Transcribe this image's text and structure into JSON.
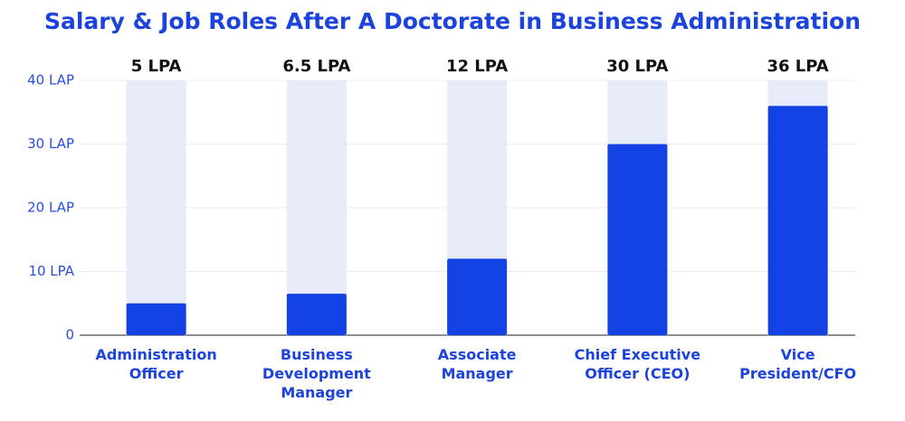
{
  "chart_data": {
    "type": "bar",
    "title": "Salary & Job Roles After A Doctorate in Business Administration",
    "categories": [
      "Administration Officer",
      "Business Development Manager",
      "Associate Manager",
      "Chief Executive Officer (CEO)",
      "Vice President/CFO"
    ],
    "values": [
      5,
      6.5,
      12,
      30,
      36
    ],
    "value_labels": [
      "5 LPA",
      "6.5 LPA",
      "12 LPA",
      "30 LPA",
      "36 LPA"
    ],
    "color": "#1242e6",
    "ylim": [
      0,
      40
    ],
    "yticks": [
      0,
      {
        "value": 10,
        "label": "10 LPA"
      },
      {
        "value": 20,
        "label": "20 LAP"
      },
      {
        "value": 30,
        "label": "30 LAP"
      },
      {
        "value": 40,
        "label": "40 LAP"
      }
    ],
    "grid": true
  }
}
